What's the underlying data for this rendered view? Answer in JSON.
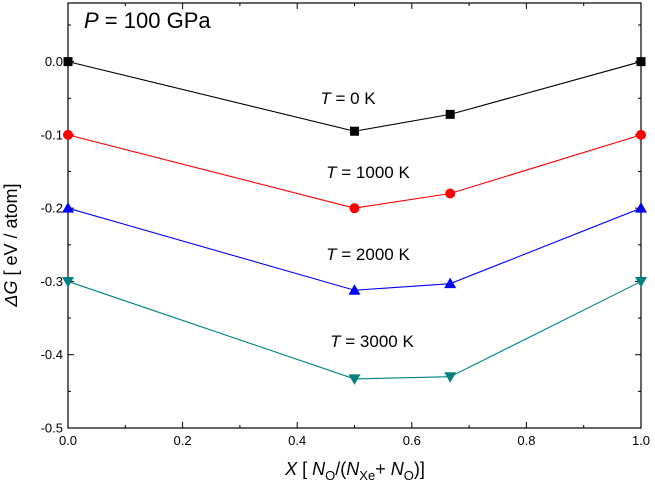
{
  "chart_data": {
    "type": "line",
    "title": {
      "italic": "P",
      "rest": " = 100 GPa"
    },
    "xlabel": {
      "pre_italic": "X",
      "open": " [ ",
      "n1": "N",
      "s1": "O",
      "mid": "/(",
      "n2": "N",
      "s2": "Xe",
      "plus": "+ ",
      "n3": "N",
      "s3": "O",
      "close": ")]"
    },
    "ylabel": {
      "italic": "ΔG",
      "rest": " [ eV / atom]"
    },
    "xlim": [
      0.0,
      1.0
    ],
    "ylim": [
      -0.5,
      0.08
    ],
    "xticks": [
      "0.0",
      "0.2",
      "0.4",
      "0.6",
      "0.8",
      "1.0"
    ],
    "yticks": [
      "0.0",
      "-0.1",
      "-0.2",
      "-0.3",
      "-0.4",
      "-0.5"
    ],
    "grid": false,
    "x": [
      0.0,
      0.5,
      0.667,
      1.0
    ],
    "series": [
      {
        "label_italic": "T",
        "label_rest": " = 0 K",
        "color": "#000000",
        "marker": "square",
        "values": [
          0.0,
          -0.095,
          -0.072,
          0.0
        ]
      },
      {
        "label_italic": "T",
        "label_rest": " = 1000 K",
        "color": "#ff0000",
        "marker": "circle",
        "values": [
          -0.1,
          -0.2,
          -0.18,
          -0.1
        ]
      },
      {
        "label_italic": "T",
        "label_rest": " = 2000 K",
        "color": "#0000ff",
        "marker": "triangle-up",
        "values": [
          -0.2,
          -0.312,
          -0.303,
          -0.2
        ]
      },
      {
        "label_italic": "T",
        "label_rest": " = 3000 K",
        "color": "#008080",
        "marker": "triangle-down",
        "values": [
          -0.3,
          -0.433,
          -0.43,
          -0.3
        ]
      }
    ]
  }
}
